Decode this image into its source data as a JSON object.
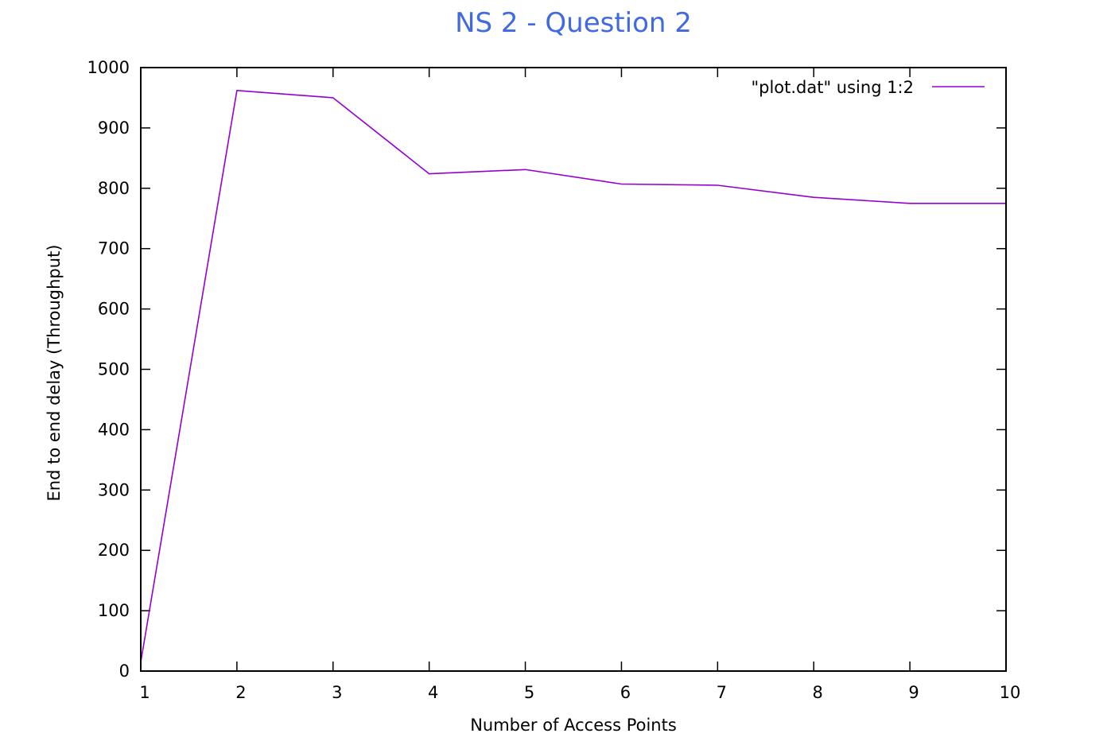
{
  "chart_data": {
    "type": "line",
    "title": "NS 2 - Question 2",
    "xlabel": "Number of Access Points",
    "ylabel": "End to end delay (Throughput)",
    "xlim": [
      1,
      10
    ],
    "ylim": [
      0,
      1000
    ],
    "x_ticks": [
      1,
      2,
      3,
      4,
      5,
      6,
      7,
      8,
      9,
      10
    ],
    "y_ticks": [
      0,
      100,
      200,
      300,
      400,
      500,
      600,
      700,
      800,
      900,
      1000
    ],
    "grid": false,
    "legend_position": "top-right",
    "series": [
      {
        "name": "\"plot.dat\" using 1:2",
        "color": "#9400d3",
        "x": [
          1,
          2,
          3,
          4,
          5,
          6,
          7,
          8,
          9,
          10
        ],
        "y": [
          15,
          962,
          950,
          824,
          831,
          807,
          805,
          785,
          775,
          775
        ]
      }
    ],
    "colors": {
      "title": "#4169e1",
      "axis": "#000000"
    }
  }
}
